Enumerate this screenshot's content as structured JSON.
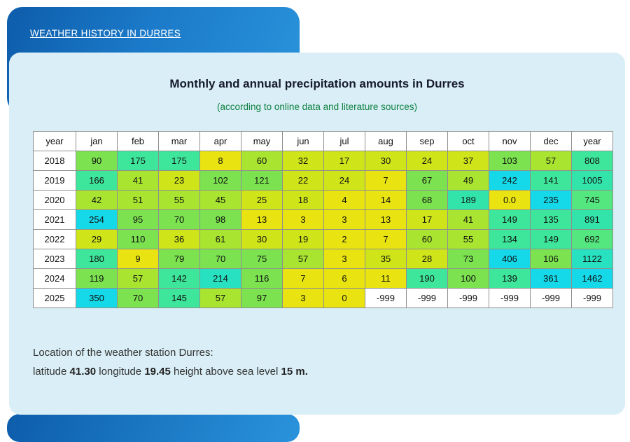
{
  "nav": {
    "link_label": "WEATHER HISTORY IN DURRES"
  },
  "main": {
    "title": "Monthly and annual precipitation amounts in Durres",
    "subtitle": "(according to online data and literature sources)"
  },
  "chart_data": {
    "type": "table",
    "title": "Monthly and annual precipitation amounts in Durres",
    "columns": [
      "year",
      "jan",
      "feb",
      "mar",
      "apr",
      "may",
      "jun",
      "jul",
      "aug",
      "sep",
      "oct",
      "nov",
      "dec",
      "year"
    ],
    "rows": [
      {
        "year": "2018",
        "values": [
          "90",
          "175",
          "175",
          "8",
          "60",
          "32",
          "17",
          "30",
          "24",
          "37",
          "103",
          "57",
          "808"
        ],
        "colors": [
          "G",
          "SG",
          "SG",
          "Y",
          "LG",
          "YG",
          "YG",
          "YG",
          "YG",
          "YG",
          "G",
          "LG",
          "SG"
        ]
      },
      {
        "year": "2019",
        "values": [
          "166",
          "41",
          "23",
          "102",
          "121",
          "22",
          "24",
          "7",
          "67",
          "49",
          "242",
          "141",
          "1005"
        ],
        "colors": [
          "SG",
          "LG",
          "YG",
          "G",
          "G",
          "YG",
          "YG",
          "Y",
          "G",
          "LG",
          "CY",
          "SG",
          "SG2"
        ]
      },
      {
        "year": "2020",
        "values": [
          "42",
          "51",
          "55",
          "45",
          "25",
          "18",
          "4",
          "14",
          "68",
          "189",
          "0.0",
          "235",
          "745"
        ],
        "colors": [
          "LG",
          "LG",
          "LG",
          "LG",
          "YG",
          "YG",
          "Y",
          "Y",
          "G",
          "SG2",
          "Y",
          "CY",
          "G2"
        ]
      },
      {
        "year": "2021",
        "values": [
          "254",
          "95",
          "70",
          "98",
          "13",
          "3",
          "3",
          "13",
          "17",
          "41",
          "149",
          "135",
          "891"
        ],
        "colors": [
          "CY",
          "G",
          "G",
          "G",
          "Y",
          "Y",
          "Y",
          "Y",
          "YG",
          "LG",
          "SG",
          "SG",
          "SG2"
        ]
      },
      {
        "year": "2022",
        "values": [
          "29",
          "110",
          "36",
          "61",
          "30",
          "19",
          "2",
          "7",
          "60",
          "55",
          "134",
          "149",
          "692"
        ],
        "colors": [
          "YG",
          "G",
          "YG",
          "LG",
          "YG",
          "YG",
          "Y",
          "Y",
          "LG",
          "LG",
          "SG",
          "SG",
          "G2"
        ]
      },
      {
        "year": "2023",
        "values": [
          "180",
          "9",
          "79",
          "70",
          "75",
          "57",
          "3",
          "35",
          "28",
          "73",
          "406",
          "106",
          "1122"
        ],
        "colors": [
          "SG",
          "Y",
          "G",
          "G",
          "G",
          "LG",
          "Y",
          "YG",
          "YG",
          "G",
          "CY",
          "G",
          "TQ"
        ]
      },
      {
        "year": "2024",
        "values": [
          "119",
          "57",
          "142",
          "214",
          "116",
          "7",
          "6",
          "11",
          "190",
          "100",
          "139",
          "361",
          "1462"
        ],
        "colors": [
          "G",
          "LG",
          "SG",
          "TQ",
          "G",
          "Y",
          "Y",
          "Y",
          "SG",
          "G",
          "SG",
          "CY",
          "CY"
        ]
      },
      {
        "year": "2025",
        "values": [
          "350",
          "70",
          "145",
          "57",
          "97",
          "3",
          "0",
          "-999",
          "-999",
          "-999",
          "-999",
          "-999",
          "-999"
        ],
        "colors": [
          "CY",
          "G",
          "SG",
          "LG",
          "G",
          "Y",
          "Y",
          "W",
          "W",
          "W",
          "W",
          "W",
          "W"
        ]
      }
    ],
    "palette": {
      "Y": "#e9e411",
      "YG": "#cfe51a",
      "LG": "#a9e431",
      "G": "#7ce250",
      "G2": "#55e77f",
      "SG": "#3ee69b",
      "SG2": "#32e4a9",
      "TQ": "#28e1c1",
      "CY": "#15d9e9",
      "W": "#ffffff"
    }
  },
  "station": {
    "line1": "Location of the weather station Durres:",
    "line2_parts": [
      {
        "text": "latitude ",
        "bold": false
      },
      {
        "text": "41.30",
        "bold": true
      },
      {
        "text": " longitude ",
        "bold": false
      },
      {
        "text": "19.45",
        "bold": true
      },
      {
        "text": " height above sea level ",
        "bold": false
      },
      {
        "text": "15 m.",
        "bold": true
      }
    ]
  },
  "colors": {
    "header_blue_dark": "#0d5dab",
    "header_blue_light": "#2a93dc",
    "panel_background": "#d9eef6",
    "subtitle_green": "#0e8040",
    "table_border": "#8f8f8f",
    "link_text": "#ffffff"
  }
}
